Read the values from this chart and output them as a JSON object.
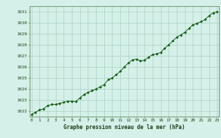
{
  "x": [
    0,
    0.5,
    1,
    1.5,
    2,
    2.5,
    3,
    3.5,
    4,
    4.5,
    5,
    5.5,
    6,
    6.5,
    7,
    7.5,
    8,
    8.5,
    9,
    9.5,
    10,
    10.5,
    11,
    11.5,
    12,
    12.5,
    13,
    13.5,
    14,
    14.5,
    15,
    15.5,
    16,
    16.5,
    17,
    17.5,
    18,
    18.5,
    19,
    19.5,
    20,
    20.5,
    21,
    21.5,
    22,
    22.5,
    23
  ],
  "y": [
    1021.7,
    1021.9,
    1022.1,
    1022.2,
    1022.5,
    1022.6,
    1022.6,
    1022.7,
    1022.8,
    1022.9,
    1022.9,
    1022.85,
    1023.2,
    1023.5,
    1023.7,
    1023.85,
    1024.0,
    1024.2,
    1024.4,
    1024.85,
    1025.0,
    1025.3,
    1025.6,
    1026.0,
    1026.35,
    1026.65,
    1026.7,
    1026.55,
    1026.6,
    1026.9,
    1027.1,
    1027.2,
    1027.3,
    1027.7,
    1028.0,
    1028.35,
    1028.7,
    1028.9,
    1029.15,
    1029.5,
    1029.8,
    1029.95,
    1030.1,
    1030.3,
    1030.65,
    1030.9,
    1031.0
  ],
  "line_color": "#1a5c1a",
  "marker_color": "#1a5c1a",
  "bg_color": "#d4f0e8",
  "grid_color": "#a8cfc0",
  "title": "Graphe pression niveau de la mer (hPa)",
  "ylabel_ticks": [
    1022,
    1023,
    1024,
    1025,
    1026,
    1027,
    1028,
    1029,
    1030,
    1031
  ],
  "xlabel_ticks": [
    0,
    1,
    2,
    3,
    4,
    5,
    6,
    7,
    8,
    9,
    10,
    11,
    12,
    13,
    14,
    15,
    16,
    17,
    18,
    19,
    20,
    21,
    22,
    23
  ],
  "ylim": [
    1021.5,
    1031.5
  ],
  "xlim": [
    -0.2,
    23.2
  ]
}
